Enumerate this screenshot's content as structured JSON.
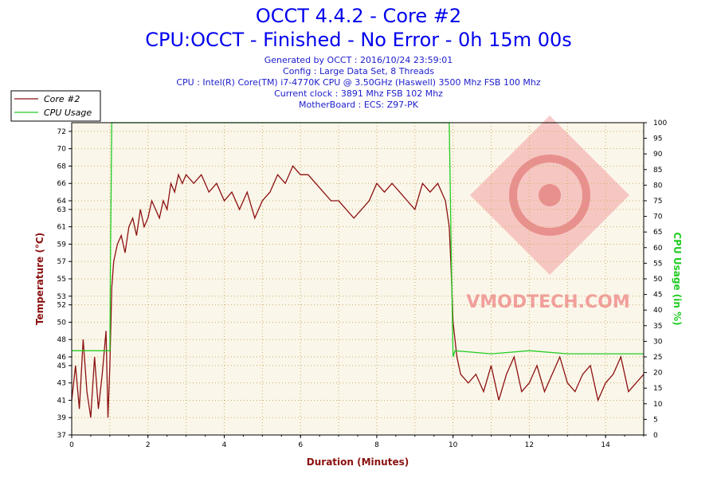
{
  "header": {
    "title_line1": "OCCT 4.4.2 - Core #2",
    "title_line2": "CPU:OCCT - Finished - No Error - 0h 15m 00s",
    "info_lines": [
      "Generated by OCCT : 2016/10/24 23:59:01",
      "Config : Large Data Set, 8 Threads",
      "CPU : Intel(R) Core(TM) i7-4770K CPU @ 3.50GHz (Haswell) 3500 Mhz FSB 100 Mhz",
      "Current clock : 3891 Mhz FSB 102 Mhz",
      "MotherBoard : ECS: Z97-PK"
    ]
  },
  "watermark": {
    "text": "VMODTECH.COM"
  },
  "colors": {
    "temperature": "#8b1010",
    "cpu_usage": "#22cc22",
    "title": "#0000ee",
    "info": "#1c1ccc",
    "plot_bg": "#fbf6ea",
    "grid": "#c8b060"
  },
  "chart_data": {
    "type": "line",
    "xlabel": "Duration (Minutes)",
    "ylabel_left": "Temperature (°C)",
    "ylabel_right": "CPU Usage (in %)",
    "xlim": [
      0,
      15
    ],
    "ylim_left": [
      37,
      73
    ],
    "ylim_right": [
      0,
      100
    ],
    "x_ticks": [
      0,
      2,
      4,
      6,
      8,
      10,
      12,
      14
    ],
    "y_left_ticks": [
      37,
      39,
      41,
      43,
      45,
      46,
      48,
      50,
      52,
      53,
      55,
      57,
      59,
      61,
      63,
      64,
      66,
      68,
      70,
      72
    ],
    "y_right_ticks": [
      0,
      5,
      10,
      15,
      20,
      25,
      30,
      35,
      40,
      45,
      50,
      55,
      60,
      65,
      70,
      75,
      80,
      85,
      90,
      95,
      100
    ],
    "grid": true,
    "legend_position": "top-left",
    "series": [
      {
        "name": "Core #2",
        "axis": "left",
        "x": [
          0,
          0.1,
          0.2,
          0.3,
          0.4,
          0.5,
          0.6,
          0.7,
          0.8,
          0.9,
          0.95,
          1.0,
          1.05,
          1.1,
          1.2,
          1.3,
          1.4,
          1.5,
          1.6,
          1.7,
          1.8,
          1.9,
          2.0,
          2.1,
          2.2,
          2.3,
          2.4,
          2.5,
          2.6,
          2.7,
          2.8,
          2.9,
          3.0,
          3.2,
          3.4,
          3.6,
          3.8,
          4.0,
          4.2,
          4.4,
          4.6,
          4.8,
          5.0,
          5.2,
          5.4,
          5.6,
          5.8,
          6.0,
          6.2,
          6.4,
          6.6,
          6.8,
          7.0,
          7.2,
          7.4,
          7.6,
          7.8,
          8.0,
          8.2,
          8.4,
          8.6,
          8.8,
          9.0,
          9.2,
          9.4,
          9.6,
          9.8,
          9.9,
          9.95,
          10.0,
          10.1,
          10.2,
          10.4,
          10.6,
          10.8,
          11.0,
          11.2,
          11.4,
          11.6,
          11.8,
          12.0,
          12.2,
          12.4,
          12.6,
          12.8,
          13.0,
          13.2,
          13.4,
          13.6,
          13.8,
          14.0,
          14.2,
          14.4,
          14.6,
          14.8,
          15.0
        ],
        "values": [
          41,
          45,
          40,
          48,
          42,
          39,
          46,
          40,
          44,
          49,
          39,
          45,
          54,
          57,
          59,
          60,
          58,
          61,
          62,
          60,
          63,
          61,
          62,
          64,
          63,
          62,
          64,
          63,
          66,
          65,
          67,
          66,
          67,
          66,
          67,
          65,
          66,
          64,
          65,
          63,
          65,
          62,
          64,
          65,
          67,
          66,
          68,
          67,
          67,
          66,
          65,
          64,
          64,
          63,
          62,
          63,
          64,
          66,
          65,
          66,
          65,
          64,
          63,
          66,
          65,
          66,
          64,
          61,
          56,
          50,
          46,
          44,
          43,
          44,
          42,
          45,
          41,
          44,
          46,
          42,
          43,
          45,
          42,
          44,
          46,
          43,
          42,
          44,
          45,
          41,
          43,
          44,
          46,
          42,
          43,
          44
        ]
      },
      {
        "name": "CPU Usage",
        "axis": "right",
        "x": [
          0,
          0.5,
          1.0,
          1.02,
          1.05,
          5.0,
          9.9,
          9.95,
          10.0,
          10.05,
          11.0,
          12.0,
          13.0,
          14.0,
          15.0
        ],
        "values": [
          27,
          27,
          27,
          60,
          100,
          100,
          100,
          60,
          25,
          27,
          26,
          27,
          26,
          26,
          26
        ]
      }
    ]
  }
}
